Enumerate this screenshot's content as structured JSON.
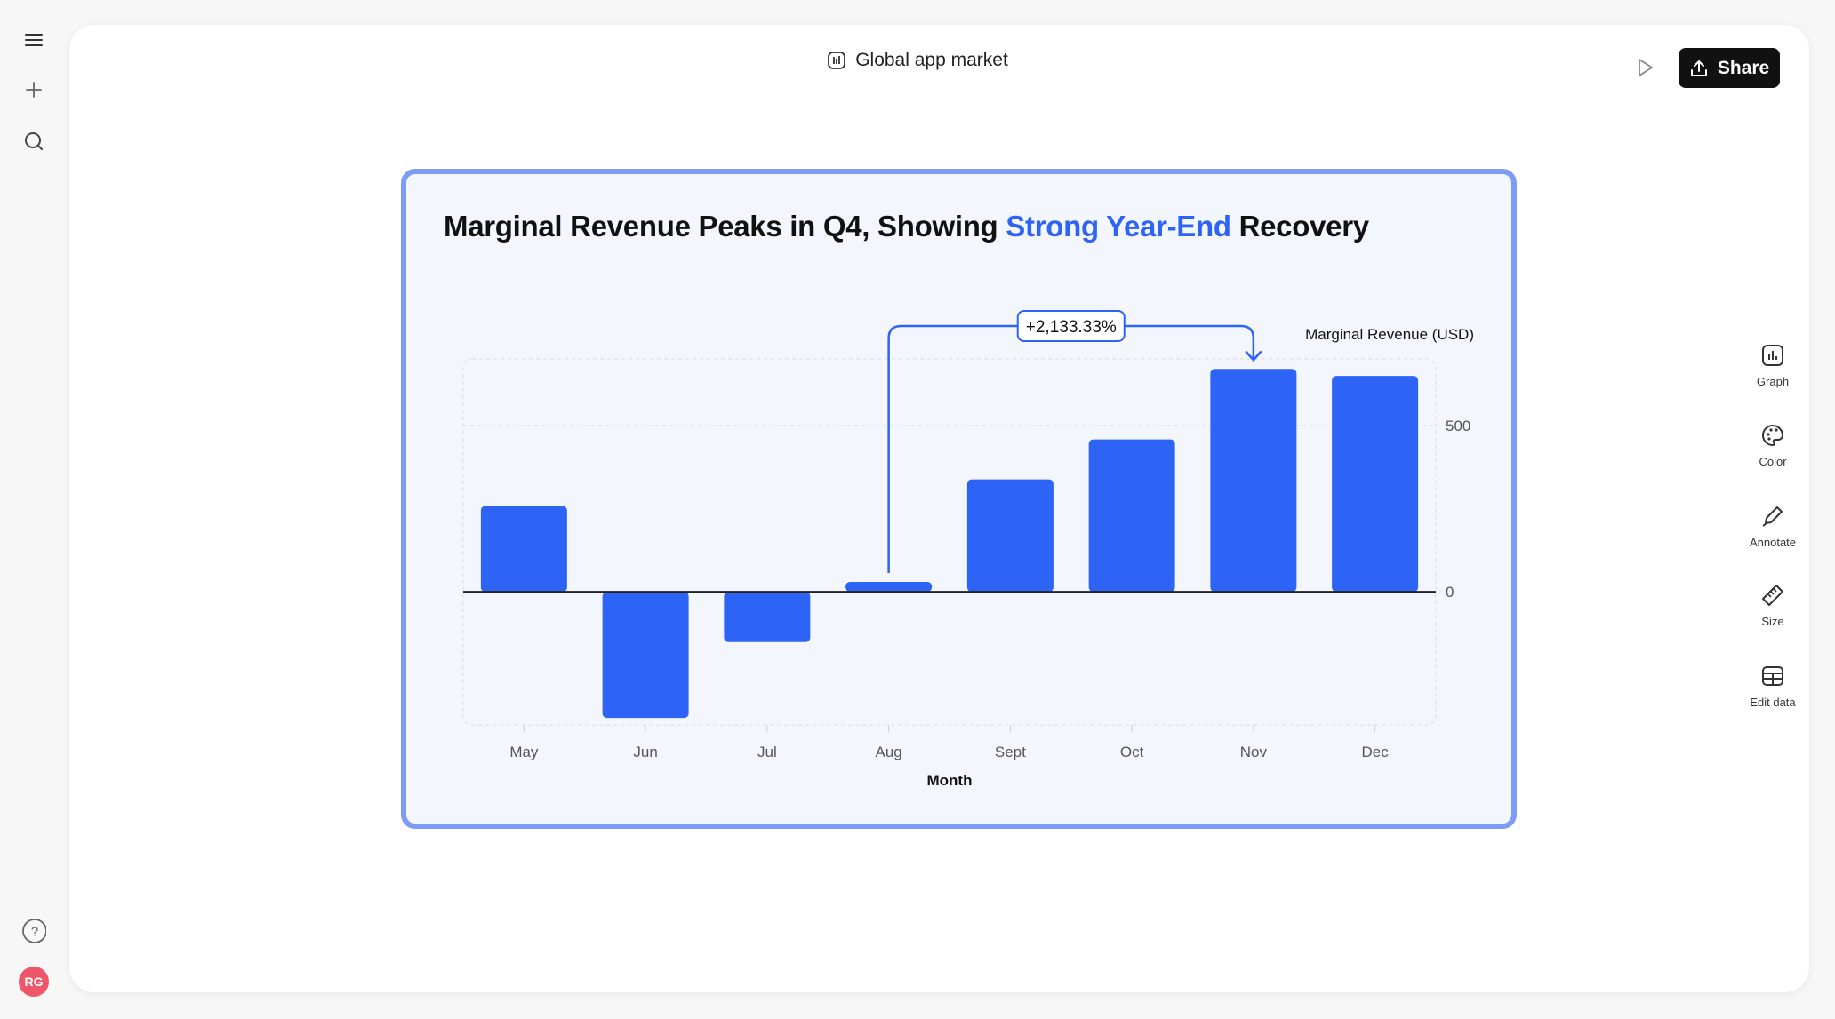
{
  "header": {
    "doc_title": "Global app market",
    "share_label": "Share",
    "doc_icon": "chart-doc-icon",
    "play_icon": "play-icon",
    "share_icon": "upload-icon"
  },
  "left_sidebar": {
    "icons": [
      "menu-icon",
      "plus-icon",
      "search-icon",
      "help-icon"
    ],
    "avatar_initials": "RG",
    "avatar_color": "#f0566a"
  },
  "tools": [
    {
      "label": "Graph",
      "icon": "bar-chart-icon"
    },
    {
      "label": "Color",
      "icon": "palette-icon"
    },
    {
      "label": "Annotate",
      "icon": "pen-icon"
    },
    {
      "label": "Size",
      "icon": "ruler-icon"
    },
    {
      "label": "Edit data",
      "icon": "table-icon"
    }
  ],
  "chart_data": {
    "type": "bar",
    "title_parts": {
      "before": "Marginal Revenue Peaks in Q4, Showing ",
      "highlight": "Strong Year-End",
      "after": " Recovery"
    },
    "xlabel": "Month",
    "ylabel": "Marginal Revenue (USD)",
    "categories": [
      "May",
      "Jun",
      "Jul",
      "Aug",
      "Sept",
      "Oct",
      "Nov",
      "Dec"
    ],
    "values": [
      258,
      -379,
      -151,
      30,
      338,
      458,
      670,
      649
    ],
    "ylim": [
      -400,
      700
    ],
    "yticks": [
      0,
      500
    ],
    "ytick_labels": [
      "0",
      "500"
    ],
    "grid": true,
    "bar_color": "#2e64f5",
    "highlight_color": "#2e64f5",
    "annotation": {
      "from": "Aug",
      "to": "Nov",
      "label": "+2,133.33%"
    }
  }
}
